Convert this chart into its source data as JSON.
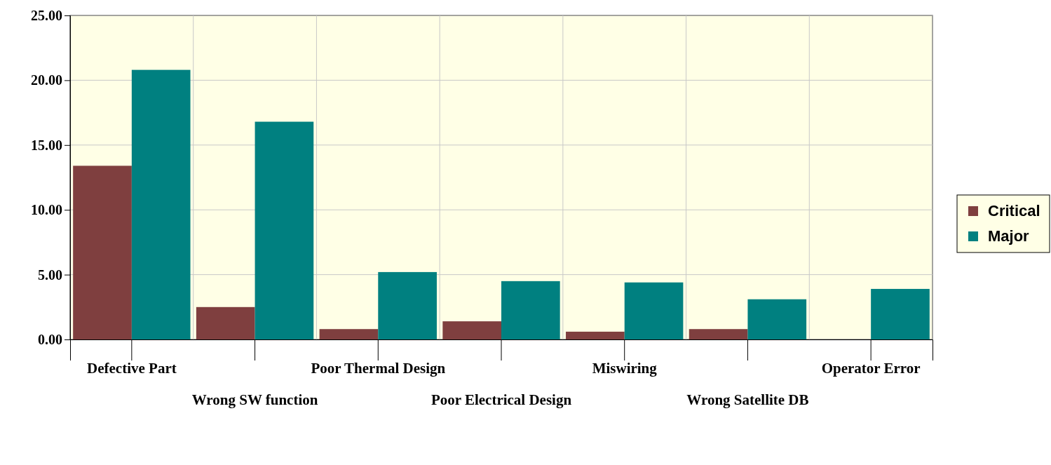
{
  "chart_data": {
    "type": "bar",
    "categories": [
      "Defective Part",
      "Wrong SW function",
      "Poor Thermal Design",
      "Poor Electrical Design",
      "Miswiring",
      "Wrong Satellite DB",
      "Operator Error"
    ],
    "series": [
      {
        "name": "Critical",
        "color": "#7f3f3f",
        "values": [
          13.4,
          2.5,
          0.8,
          1.4,
          0.6,
          0.8,
          0
        ]
      },
      {
        "name": "Major",
        "color": "#008080",
        "values": [
          20.8,
          16.8,
          5.2,
          4.5,
          4.4,
          3.1,
          3.9
        ]
      }
    ],
    "ylim": [
      0,
      25
    ],
    "yticks": [
      {
        "value": 0,
        "label": "0.00"
      },
      {
        "value": 5,
        "label": "5.00"
      },
      {
        "value": 10,
        "label": "10.00"
      },
      {
        "value": 15,
        "label": "15.00"
      },
      {
        "value": 20,
        "label": "20.00"
      },
      {
        "value": 25,
        "label": "25.00"
      }
    ],
    "grid": true,
    "legend": "right"
  }
}
